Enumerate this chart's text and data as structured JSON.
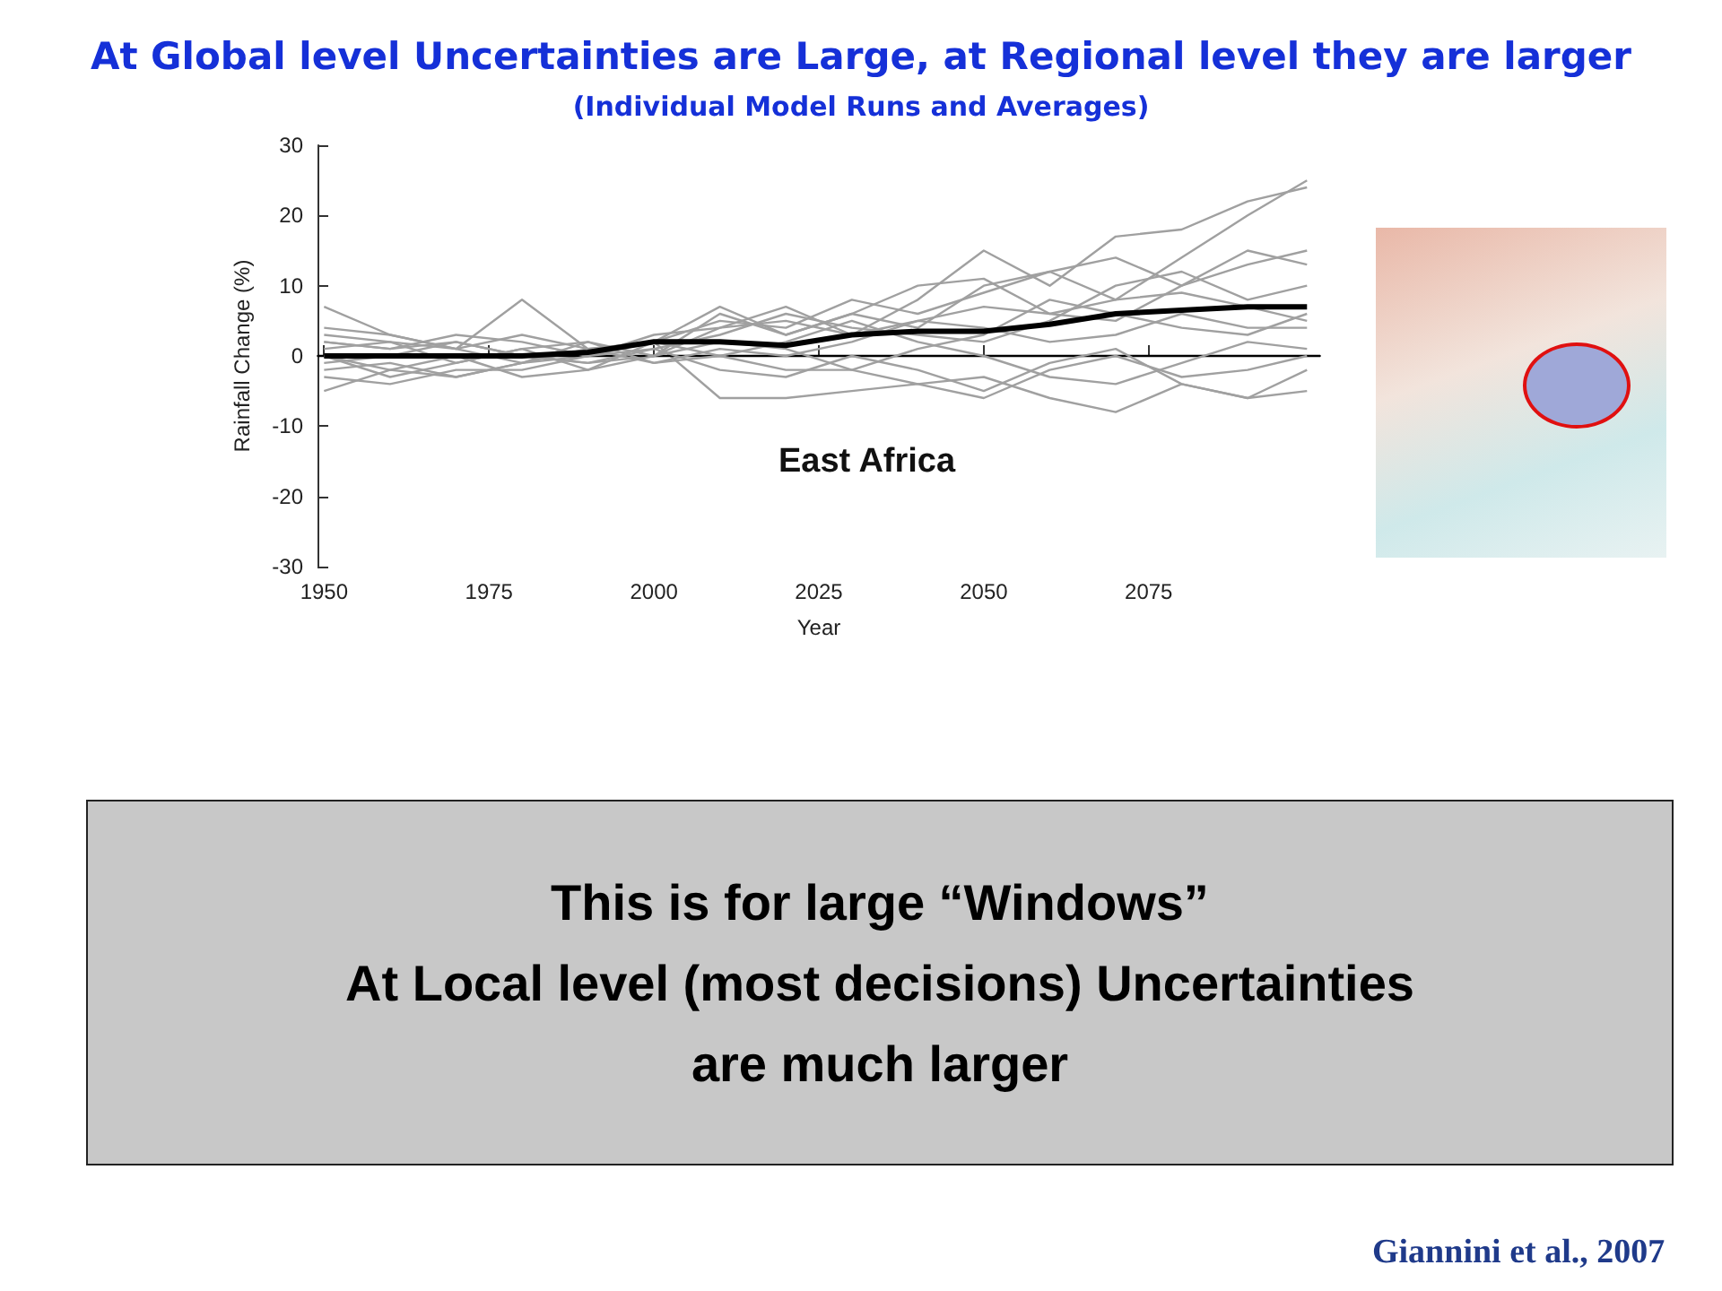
{
  "chart_data": {
    "type": "line",
    "title": "At Global level Uncertainties are Large, at Regional level they are larger",
    "subtitle": "(Individual Model Runs and Averages)",
    "xlabel": "Year",
    "ylabel": "Rainfall Change (%)",
    "annotations": [
      "East Africa",
      "This is for large “Windows”\nAt Local level (most decisions) Uncertainties\nare much larger",
      "Giannini et al., 2007"
    ],
    "x": [
      1950,
      1960,
      1970,
      1980,
      1990,
      2000,
      2010,
      2020,
      2030,
      2040,
      2050,
      2060,
      2070,
      2080,
      2090,
      2099
    ],
    "series": [
      {
        "color": "#a0a0a0",
        "values": [
          7,
          3,
          1,
          8,
          1,
          2,
          7,
          3,
          6,
          4,
          10,
          12,
          8,
          14,
          20,
          25
        ]
      },
      {
        "color": "#a0a0a0",
        "values": [
          2,
          1,
          2,
          0,
          -1,
          0,
          4,
          5,
          3,
          8,
          15,
          10,
          17,
          18,
          22,
          24
        ]
      },
      {
        "color": "#a0a0a0",
        "values": [
          -5,
          -2,
          -3,
          -1,
          0,
          2,
          -6,
          -6,
          -5,
          -4,
          -3,
          -6,
          -8,
          -4,
          -6,
          -5
        ]
      },
      {
        "color": "#a0a0a0",
        "values": [
          3,
          2,
          1,
          3,
          1,
          2,
          5,
          4,
          8,
          6,
          9,
          12,
          14,
          10,
          13,
          15
        ]
      },
      {
        "color": "#a0a0a0",
        "values": [
          0,
          -2,
          0,
          -3,
          -2,
          0,
          2,
          1,
          -2,
          -4,
          -6,
          -2,
          0,
          -3,
          -2,
          0
        ]
      },
      {
        "color": "#a0a0a0",
        "values": [
          -3,
          -4,
          -2,
          -2,
          0,
          1,
          3,
          6,
          4,
          3,
          2,
          5,
          10,
          12,
          8,
          10
        ]
      },
      {
        "color": "#a0a0a0",
        "values": [
          1,
          2,
          -1,
          1,
          2,
          -1,
          1,
          0,
          2,
          5,
          4,
          2,
          3,
          6,
          4,
          4
        ]
      },
      {
        "color": "#a0a0a0",
        "values": [
          -1,
          0,
          2,
          0,
          -1,
          1,
          -2,
          -3,
          0,
          -2,
          -5,
          -1,
          1,
          -4,
          -6,
          -2
        ]
      },
      {
        "color": "#a0a0a0",
        "values": [
          2,
          1,
          3,
          2,
          0,
          3,
          4,
          7,
          3,
          5,
          7,
          6,
          8,
          9,
          7,
          5
        ]
      },
      {
        "color": "#a0a0a0",
        "values": [
          -2,
          -1,
          -3,
          -1,
          1,
          -1,
          0,
          2,
          5,
          2,
          0,
          -3,
          -4,
          -1,
          2,
          1
        ]
      },
      {
        "color": "#a0a0a0",
        "values": [
          4,
          3,
          1,
          -1,
          2,
          0,
          6,
          3,
          6,
          10,
          11,
          6,
          5,
          10,
          15,
          13
        ]
      },
      {
        "color": "#a0a0a0",
        "values": [
          0,
          -3,
          -1,
          1,
          -2,
          2,
          0,
          -2,
          -2,
          1,
          3,
          8,
          6,
          4,
          3,
          6
        ]
      },
      {
        "color": "#000000",
        "values": [
          0,
          0,
          0,
          0,
          0.5,
          2,
          2,
          1.5,
          3,
          3.5,
          3.5,
          4.5,
          6,
          6.5,
          7,
          7
        ]
      }
    ],
    "xlim": [
      1949,
      2101
    ],
    "xticks": [
      1950,
      1975,
      2000,
      2025,
      2050,
      2075
    ],
    "ylim": [
      -30,
      30
    ],
    "yticks": [
      -30,
      -20,
      -10,
      0,
      10,
      20,
      30
    ],
    "ref_lines": [
      {
        "axis": "y",
        "value": 0,
        "color": "#000000"
      }
    ],
    "marker": "none"
  }
}
